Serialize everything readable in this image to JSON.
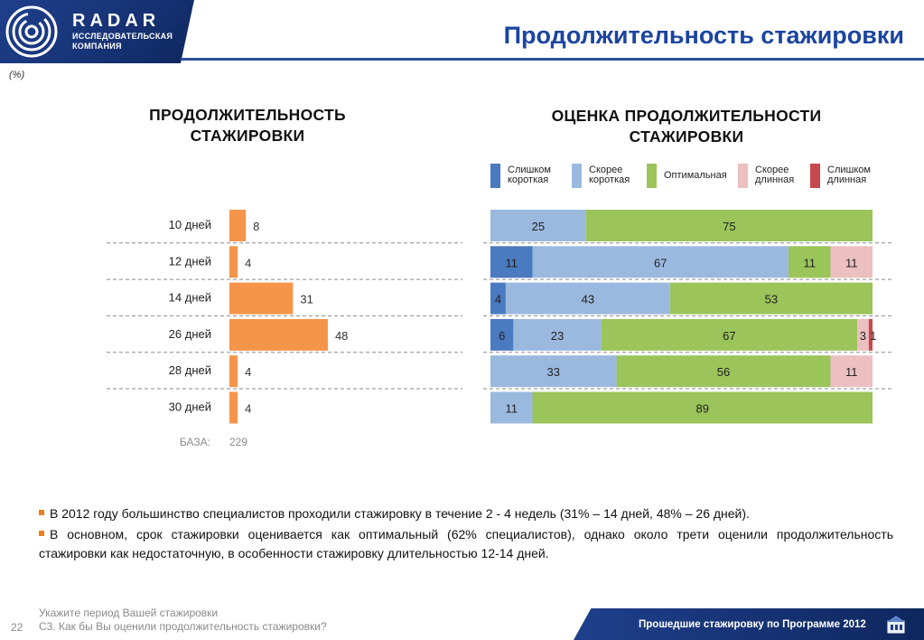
{
  "brand": {
    "name": "RADAR",
    "sub_line1": "ИССЛЕДОВАТЕЛЬСКАЯ",
    "sub_line2": "КОМПАНИЯ"
  },
  "page_title": "Продолжительность стажировки",
  "unit_note": "(%)",
  "left_title": {
    "line1": "ПРОДОЛЖИТЕЛЬНОСТЬ",
    "line2": "СТАЖИРОВКИ"
  },
  "right_title": {
    "line1": "ОЦЕНКА ПРОДОЛЖИТЕЛЬНОСТИ",
    "line2": "СТАЖИРОВКИ"
  },
  "legend": [
    {
      "line1": "Слишком",
      "line2": "короткая",
      "color": "#4a7abf"
    },
    {
      "line1": "Скорее",
      "line2": "короткая",
      "color": "#9bb9df"
    },
    {
      "line1": "Оптимальная",
      "line2": "",
      "color": "#9bc45a"
    },
    {
      "line1": "Скорее",
      "line2": "длинная",
      "color": "#ecbfc1"
    },
    {
      "line1": "Слишком",
      "line2": "длинная",
      "color": "#c9484e"
    }
  ],
  "chart_data": [
    {
      "type": "bar",
      "orientation": "horizontal",
      "title": "ПРОДОЛЖИТЕЛЬНОСТЬ СТАЖИРОВКИ",
      "categories": [
        "10 дней",
        "12 дней",
        "14 дней",
        "26 дней",
        "28 дней",
        "30 дней"
      ],
      "values": [
        8,
        4,
        31,
        48,
        4,
        4
      ],
      "color": "#f5954a",
      "base_label": "БАЗА:",
      "base_value": "229"
    },
    {
      "type": "bar",
      "orientation": "horizontal",
      "stacked": "100%",
      "title": "ОЦЕНКА ПРОДОЛЖИТЕЛЬНОСТИ СТАЖИРОВКИ",
      "categories": [
        "10 дней",
        "12 дней",
        "14 дней",
        "26 дней",
        "28 дней",
        "30 дней"
      ],
      "series": [
        {
          "name": "Слишком короткая",
          "color": "#4a7abf",
          "values": [
            0,
            11,
            4,
            6,
            0,
            0
          ]
        },
        {
          "name": "Скорее короткая",
          "color": "#9bb9df",
          "values": [
            25,
            67,
            43,
            23,
            33,
            11
          ]
        },
        {
          "name": "Оптимальная",
          "color": "#9bc45a",
          "values": [
            75,
            11,
            53,
            67,
            56,
            89
          ]
        },
        {
          "name": "Скорее длинная",
          "color": "#ecbfc1",
          "values": [
            0,
            11,
            0,
            3,
            11,
            0
          ]
        },
        {
          "name": "Слишком длинная",
          "color": "#c9484e",
          "values": [
            0,
            0,
            0,
            1,
            0,
            0
          ]
        }
      ],
      "labels": [
        [
          "",
          "25",
          "75",
          "",
          ""
        ],
        [
          "11",
          "67",
          "11",
          "11",
          ""
        ],
        [
          "4",
          "43",
          "53",
          "",
          ""
        ],
        [
          "6",
          "23",
          "67",
          "3",
          "1"
        ],
        [
          "",
          "33",
          "56",
          "11",
          ""
        ],
        [
          "",
          "11",
          "89",
          "",
          ""
        ]
      ]
    }
  ],
  "notes": [
    "В 2012 году большинство специалистов проходили стажировку в течение 2 - 4 недель (31% – 14 дней, 48% – 26 дней).",
    "В основном, срок стажировки оценивается как оптимальный (62% специалистов), однако около трети оценили продолжительность стажировки как недостаточную, в особенности стажировку длительностью 12-14 дней."
  ],
  "footer": {
    "question1": "Укажите период Вашей стажировки",
    "question2": "С3. Как бы Вы оценили продолжительность стажировки?",
    "page_number": "22",
    "program": "Прошедшие стажировку по Программе 2012"
  }
}
